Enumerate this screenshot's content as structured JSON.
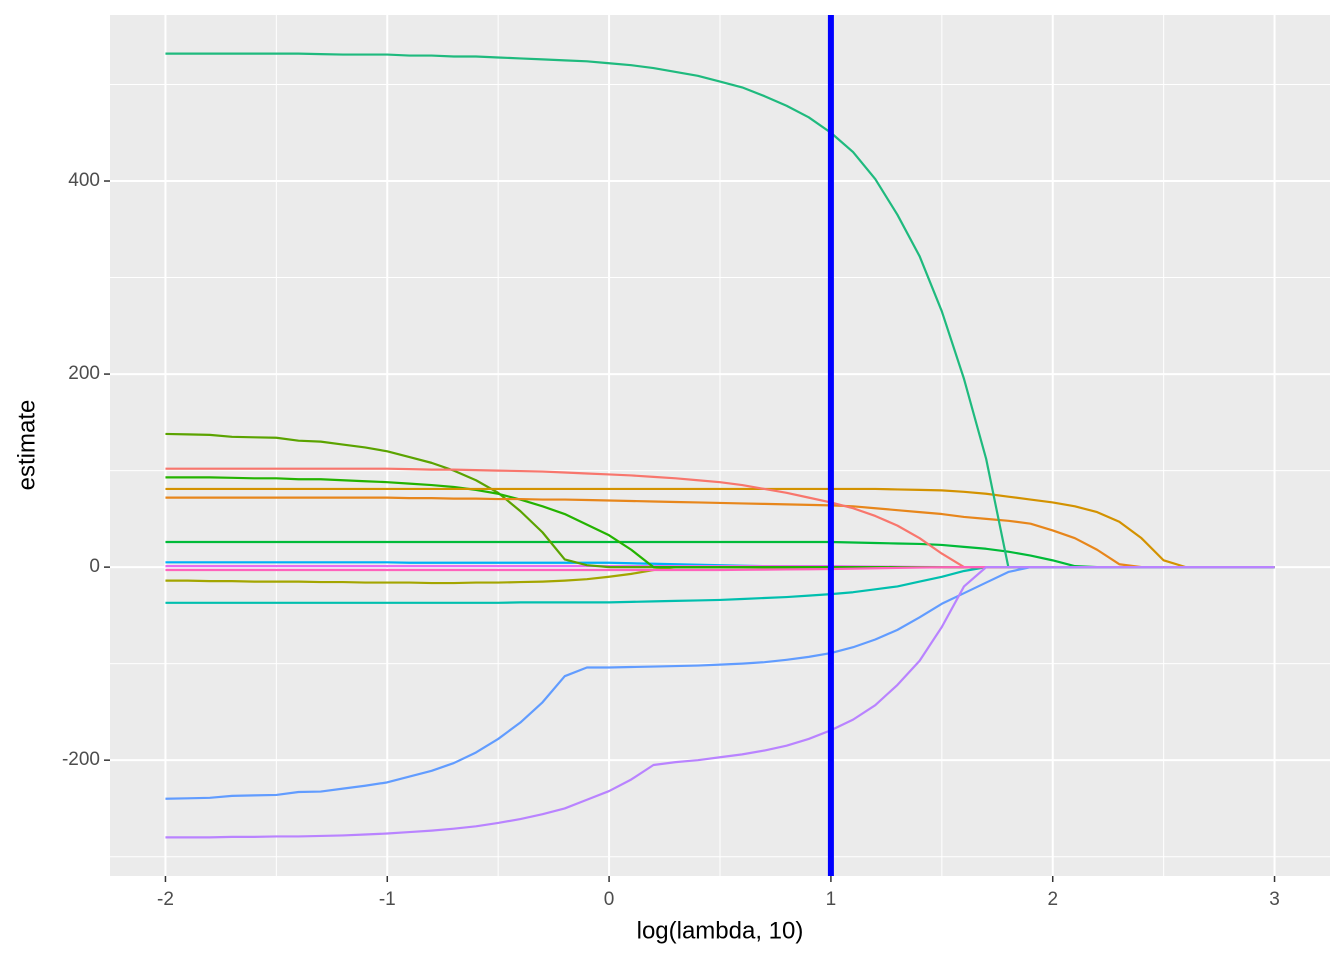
{
  "chart_data": {
    "type": "line",
    "xlabel": "log(lambda, 10)",
    "ylabel": "estimate",
    "x": [
      -2,
      -1.9,
      -1.8,
      -1.7,
      -1.6,
      -1.5,
      -1.4,
      -1.3,
      -1.2,
      -1.1,
      -1,
      -0.9,
      -0.8,
      -0.7,
      -0.6,
      -0.5,
      -0.4,
      -0.3,
      -0.2,
      -0.1,
      0,
      0.1,
      0.2,
      0.3,
      0.4,
      0.5,
      0.6,
      0.7,
      0.8,
      0.9,
      1,
      1.1,
      1.2,
      1.3,
      1.4,
      1.5,
      1.6,
      1.7,
      1.8,
      1.9,
      2,
      2.1,
      2.2,
      2.3,
      2.4,
      2.5,
      2.6,
      2.7,
      2.8,
      2.9,
      3
    ],
    "xlim": [
      -2.25,
      3.25
    ],
    "xticks": [
      -2,
      -1,
      0,
      1,
      2,
      3
    ],
    "xminor": [
      -1.5,
      -0.5,
      0.5,
      1.5,
      2.5
    ],
    "ylim": [
      -320,
      572
    ],
    "yticks": [
      -200,
      0,
      200,
      400
    ],
    "yminor": [
      -300,
      -100,
      100,
      300,
      500
    ],
    "grid": true,
    "vline": {
      "value": 1,
      "color": "#0000ff"
    },
    "series": [
      {
        "color": "#00ba38",
        "values": [
          26,
          26,
          26,
          26,
          26,
          26,
          26,
          26,
          26,
          26,
          26,
          26,
          26,
          26,
          26,
          26,
          26,
          26,
          26,
          26,
          26,
          26,
          26,
          26,
          26,
          26,
          26,
          26,
          26,
          26,
          26,
          25.5,
          25,
          24.5,
          24,
          23,
          21,
          19,
          16,
          12,
          7,
          1,
          0,
          0,
          0,
          0,
          0,
          0,
          0,
          0,
          0
        ]
      },
      {
        "color": "#00b0f6",
        "values": [
          5,
          5,
          5,
          5,
          5,
          5,
          5,
          5,
          5,
          5,
          5,
          4.5,
          4.5,
          4.5,
          4.5,
          4.5,
          4.5,
          4.5,
          4.5,
          4.5,
          4.5,
          4,
          3.5,
          3,
          2.5,
          2,
          1.5,
          1,
          0.5,
          0.2,
          0,
          0,
          0,
          0,
          0,
          0,
          0,
          0,
          0,
          0,
          0,
          0,
          0,
          0,
          0,
          0,
          0,
          0,
          0,
          0,
          0
        ]
      },
      {
        "color": "#e76bf3",
        "values": [
          1,
          1,
          1,
          1,
          1,
          1,
          1,
          1,
          1,
          1,
          1,
          1,
          1,
          1,
          1,
          1,
          1,
          1,
          1,
          1,
          1,
          1,
          1,
          1,
          1,
          1,
          1,
          1,
          1,
          1,
          1,
          0.8,
          0.6,
          0.4,
          0.2,
          0,
          0,
          0,
          0,
          0,
          0,
          0,
          0,
          0,
          0,
          0,
          0,
          0,
          0,
          0,
          0
        ]
      },
      {
        "color": "#a3a500",
        "values": [
          -14,
          -14,
          -14.5,
          -14.5,
          -15,
          -15,
          -15,
          -15.5,
          -15.5,
          -16,
          -16,
          -16,
          -16.5,
          -16.5,
          -16,
          -16,
          -15.5,
          -15,
          -14,
          -12.5,
          -10,
          -7,
          -3,
          0,
          0,
          0,
          0,
          0,
          0,
          0,
          0,
          0,
          0,
          0,
          0,
          0,
          0,
          0,
          0,
          0,
          0,
          0,
          0,
          0,
          0,
          0,
          0,
          0,
          0,
          0,
          0
        ]
      },
      {
        "color": "#00bfae",
        "values": [
          -37,
          -37,
          -37,
          -37,
          -37,
          -37,
          -37,
          -37,
          -37,
          -37,
          -37,
          -37,
          -37,
          -37,
          -37,
          -37,
          -36.5,
          -36.5,
          -36.5,
          -36.5,
          -36.5,
          -36,
          -35.5,
          -35,
          -34.5,
          -34,
          -33,
          -32,
          -31,
          -29.5,
          -28,
          -26,
          -23,
          -20,
          -15,
          -10,
          -4,
          0,
          0,
          0,
          0,
          0,
          0,
          0,
          0,
          0,
          0,
          0,
          0,
          0,
          0
        ]
      },
      {
        "color": "#5ba300",
        "values": [
          138,
          137.5,
          137,
          135,
          134.5,
          134,
          131,
          130,
          127,
          124,
          120,
          114,
          108,
          100,
          90,
          77,
          58,
          36,
          8,
          2,
          0,
          0,
          0,
          0,
          0,
          0,
          0,
          0,
          0,
          0,
          0,
          0,
          0,
          0,
          0,
          0,
          0,
          0,
          0,
          0,
          0,
          0,
          0,
          0,
          0,
          0,
          0,
          0,
          0,
          0,
          0
        ]
      },
      {
        "color": "#24b300",
        "values": [
          93,
          93,
          93,
          92.5,
          92,
          92,
          91,
          91,
          90,
          89,
          88,
          86.5,
          85,
          83,
          80,
          76,
          70,
          63,
          55,
          44,
          33,
          18,
          0,
          0,
          0,
          0,
          0,
          0,
          0,
          0,
          0,
          0,
          0,
          0,
          0,
          0,
          0,
          0,
          0,
          0,
          0,
          0,
          0,
          0,
          0,
          0,
          0,
          0,
          0,
          0,
          0
        ]
      },
      {
        "color": "#d39200",
        "values": [
          81,
          81,
          81,
          81,
          81,
          81,
          81,
          81,
          81,
          81,
          81,
          81,
          81,
          81,
          81,
          81,
          81,
          81,
          81,
          81,
          81,
          81,
          81,
          81,
          81,
          81,
          81,
          81,
          81,
          81,
          81,
          81,
          81,
          80.5,
          80,
          79.5,
          78,
          76,
          73,
          70,
          67,
          63,
          57,
          47,
          30,
          7,
          0,
          0,
          0,
          0,
          0
        ]
      },
      {
        "color": "#e7861b",
        "values": [
          72,
          72,
          72,
          72,
          72,
          72,
          72,
          72,
          72,
          72,
          72,
          71.5,
          71.5,
          71,
          71,
          70.5,
          70.5,
          70,
          70,
          69.5,
          69,
          68.5,
          68,
          67.5,
          67,
          66.5,
          66,
          65.5,
          65,
          64.5,
          64,
          63,
          61,
          59,
          57,
          55,
          52,
          50,
          48,
          45,
          38,
          30,
          18,
          3,
          0,
          0,
          0,
          0,
          0,
          0,
          0
        ]
      },
      {
        "color": "#f8766d",
        "values": [
          102,
          102,
          102,
          102,
          102,
          102,
          102,
          102,
          102,
          102,
          102,
          101.5,
          101,
          101,
          100.5,
          100,
          99.5,
          99,
          98,
          97,
          96,
          95,
          93.5,
          92,
          90,
          88,
          85,
          81,
          77,
          72,
          67,
          61,
          53,
          43,
          30,
          14,
          0,
          0,
          0,
          0,
          0,
          0,
          0,
          0,
          0,
          0,
          0,
          0,
          0,
          0,
          0
        ]
      },
      {
        "color": "#ff62bc",
        "values": [
          -3,
          -3,
          -3,
          -3,
          -3,
          -3,
          -3,
          -3,
          -3,
          -3,
          -3,
          -3,
          -3,
          -3,
          -3,
          -3,
          -3,
          -3,
          -3,
          -3,
          -3,
          -3,
          -3,
          -3,
          -3,
          -3,
          -2.8,
          -2.6,
          -2.4,
          -2.2,
          -2,
          -1.6,
          -1.2,
          -0.8,
          -0.4,
          -0.1,
          0,
          0,
          0,
          0,
          0,
          0,
          0,
          0,
          0,
          0,
          0,
          0,
          0,
          0,
          0
        ]
      },
      {
        "color": "#1fba7e",
        "values": [
          532,
          532,
          532,
          532,
          532,
          532,
          532,
          531.5,
          531,
          531,
          531,
          530,
          530,
          529,
          529,
          528,
          527,
          526,
          525,
          524,
          522,
          520,
          517,
          513,
          509,
          503,
          497,
          488,
          478,
          466,
          450,
          430,
          402,
          365,
          322,
          265,
          195,
          112,
          0,
          0,
          0,
          0,
          0,
          0,
          0,
          0,
          0,
          0,
          0,
          0,
          0
        ]
      },
      {
        "color": "#619cff",
        "values": [
          -240,
          -239.5,
          -239,
          -237,
          -236.5,
          -236,
          -233,
          -232.5,
          -229.5,
          -226.5,
          -223,
          -217,
          -211,
          -203,
          -192,
          -178,
          -161,
          -140,
          -113,
          -104,
          -104,
          -103.5,
          -103,
          -102.5,
          -102,
          -101,
          -100,
          -98.5,
          -96,
          -93,
          -89,
          -83,
          -75,
          -65,
          -52,
          -38,
          -27,
          -16,
          -5,
          0,
          0,
          0,
          0,
          0,
          0,
          0,
          0,
          0,
          0,
          0,
          0
        ]
      },
      {
        "color": "#b983ff",
        "values": [
          -280,
          -280,
          -280,
          -279.5,
          -279.5,
          -279,
          -279,
          -278.5,
          -278,
          -277,
          -276,
          -274.5,
          -273,
          -271,
          -268.5,
          -265,
          -261,
          -256,
          -250,
          -241,
          -232,
          -220,
          -205,
          -202,
          -200,
          -197,
          -194,
          -190,
          -185,
          -178,
          -169,
          -158,
          -143,
          -122,
          -97,
          -62,
          -20,
          0,
          0,
          0,
          0,
          0,
          0,
          0,
          0,
          0,
          0,
          0,
          0,
          0,
          0
        ]
      }
    ]
  }
}
